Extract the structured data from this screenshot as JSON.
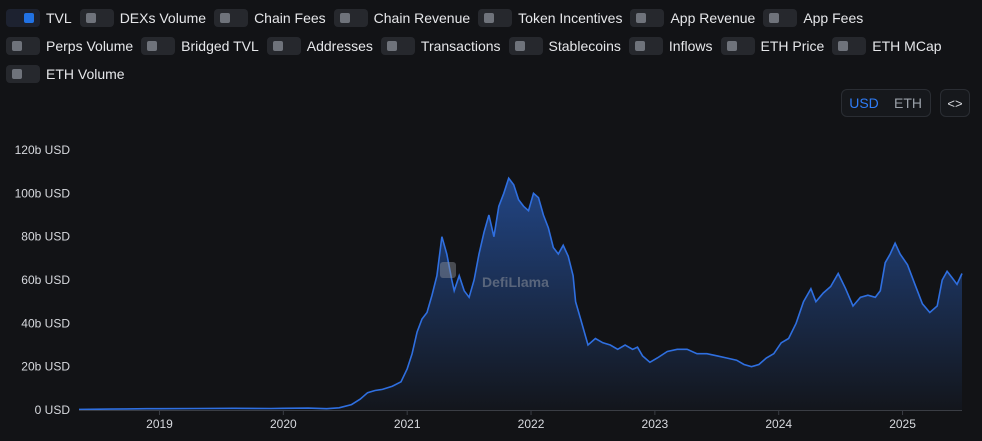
{
  "toggles": {
    "rows": [
      [
        {
          "label": "TVL",
          "on": true
        },
        {
          "label": "DEXs Volume",
          "on": false
        },
        {
          "label": "Chain Fees",
          "on": false
        },
        {
          "label": "Chain Revenue",
          "on": false
        },
        {
          "label": "Token Incentives",
          "on": false
        },
        {
          "label": "App Revenue",
          "on": false
        },
        {
          "label": "App Fees",
          "on": false
        }
      ],
      [
        {
          "label": "Perps Volume",
          "on": false
        },
        {
          "label": "Bridged TVL",
          "on": false
        },
        {
          "label": "Addresses",
          "on": false
        },
        {
          "label": "Transactions",
          "on": false
        },
        {
          "label": "Stablecoins",
          "on": false
        },
        {
          "label": "Inflows",
          "on": false
        },
        {
          "label": "ETH Price",
          "on": false
        },
        {
          "label": "ETH MCap",
          "on": false
        }
      ],
      [
        {
          "label": "ETH Volume",
          "on": false
        }
      ]
    ]
  },
  "unit_toggle": {
    "usd": "USD",
    "eth": "ETH",
    "active": "usd"
  },
  "embed_label": "<>",
  "watermark": "DefiLlama",
  "colors": {
    "line": "#2f6fe0",
    "accent": "#2172e5"
  },
  "chart_data": {
    "type": "area",
    "series": [
      {
        "name": "TVL",
        "x": [
          2018.35,
          2018.6,
          2018.9,
          2019.0,
          2019.3,
          2019.6,
          2019.9,
          2020.0,
          2020.2,
          2020.35,
          2020.45,
          2020.55,
          2020.62,
          2020.68,
          2020.74,
          2020.8,
          2020.88,
          2020.95,
          2021.0,
          2021.04,
          2021.08,
          2021.12,
          2021.16,
          2021.2,
          2021.24,
          2021.28,
          2021.32,
          2021.36,
          2021.38,
          2021.42,
          2021.46,
          2021.5,
          2021.54,
          2021.58,
          2021.62,
          2021.66,
          2021.7,
          2021.74,
          2021.78,
          2021.82,
          2021.86,
          2021.9,
          2021.94,
          2021.98,
          2022.02,
          2022.06,
          2022.1,
          2022.14,
          2022.18,
          2022.22,
          2022.26,
          2022.3,
          2022.34,
          2022.36,
          2022.4,
          2022.46,
          2022.52,
          2022.58,
          2022.64,
          2022.7,
          2022.76,
          2022.82,
          2022.86,
          2022.9,
          2022.96,
          2023.02,
          2023.1,
          2023.18,
          2023.26,
          2023.34,
          2023.42,
          2023.5,
          2023.58,
          2023.66,
          2023.72,
          2023.78,
          2023.84,
          2023.9,
          2023.96,
          2024.02,
          2024.08,
          2024.14,
          2024.2,
          2024.26,
          2024.3,
          2024.36,
          2024.42,
          2024.48,
          2024.54,
          2024.6,
          2024.66,
          2024.72,
          2024.78,
          2024.82,
          2024.86,
          2024.9,
          2024.94,
          2024.98,
          2025.04,
          2025.1,
          2025.16,
          2025.22,
          2025.28,
          2025.32,
          2025.36,
          2025.4,
          2025.44,
          2025.48
        ],
        "values": [
          0.3,
          0.4,
          0.6,
          0.6,
          0.7,
          0.8,
          0.7,
          0.8,
          0.9,
          0.6,
          1.0,
          2.5,
          5.0,
          8.0,
          9.0,
          9.5,
          11.0,
          13.0,
          19.0,
          26.0,
          36.0,
          42.0,
          45.0,
          53.0,
          62.0,
          80.0,
          72.0,
          60.0,
          55.0,
          62.0,
          55.0,
          52.0,
          60.0,
          72.0,
          82.0,
          90.0,
          80.0,
          94.0,
          100.0,
          107.0,
          104.0,
          97.0,
          94.0,
          92.0,
          100.0,
          98.0,
          90.0,
          84.0,
          75.0,
          72.0,
          76.0,
          71.0,
          62.0,
          50.0,
          42.0,
          30.0,
          33.0,
          31.0,
          30.0,
          28.0,
          30.0,
          28.0,
          29.0,
          25.0,
          22.0,
          24.0,
          27.0,
          28.0,
          28.0,
          26.0,
          26.0,
          25.0,
          24.0,
          23.0,
          21.0,
          20.0,
          21.0,
          24.0,
          26.0,
          31.0,
          33.0,
          40.0,
          50.0,
          56.0,
          50.0,
          54.0,
          57.0,
          63.0,
          56.0,
          48.0,
          52.0,
          53.0,
          52.0,
          55.0,
          68.0,
          72.0,
          77.0,
          72.0,
          67.0,
          58.0,
          49.0,
          45.0,
          48.0,
          60.0,
          64.0,
          61.0,
          58.0,
          63.0
        ]
      }
    ],
    "xticks": [
      "2019",
      "2020",
      "2021",
      "2022",
      "2023",
      "2024",
      "2025"
    ],
    "xtick_values": [
      2019,
      2020,
      2021,
      2022,
      2023,
      2024,
      2025
    ],
    "yticks": [
      "0 USD",
      "20b USD",
      "40b USD",
      "60b USD",
      "80b USD",
      "100b USD",
      "120b USD"
    ],
    "ytick_values": [
      0,
      20,
      40,
      60,
      80,
      100,
      120
    ],
    "xlim": [
      2018.35,
      2025.48
    ],
    "ylim": [
      0,
      120
    ],
    "title": "",
    "xlabel": "",
    "ylabel": "",
    "grid": false,
    "legend": "top"
  }
}
